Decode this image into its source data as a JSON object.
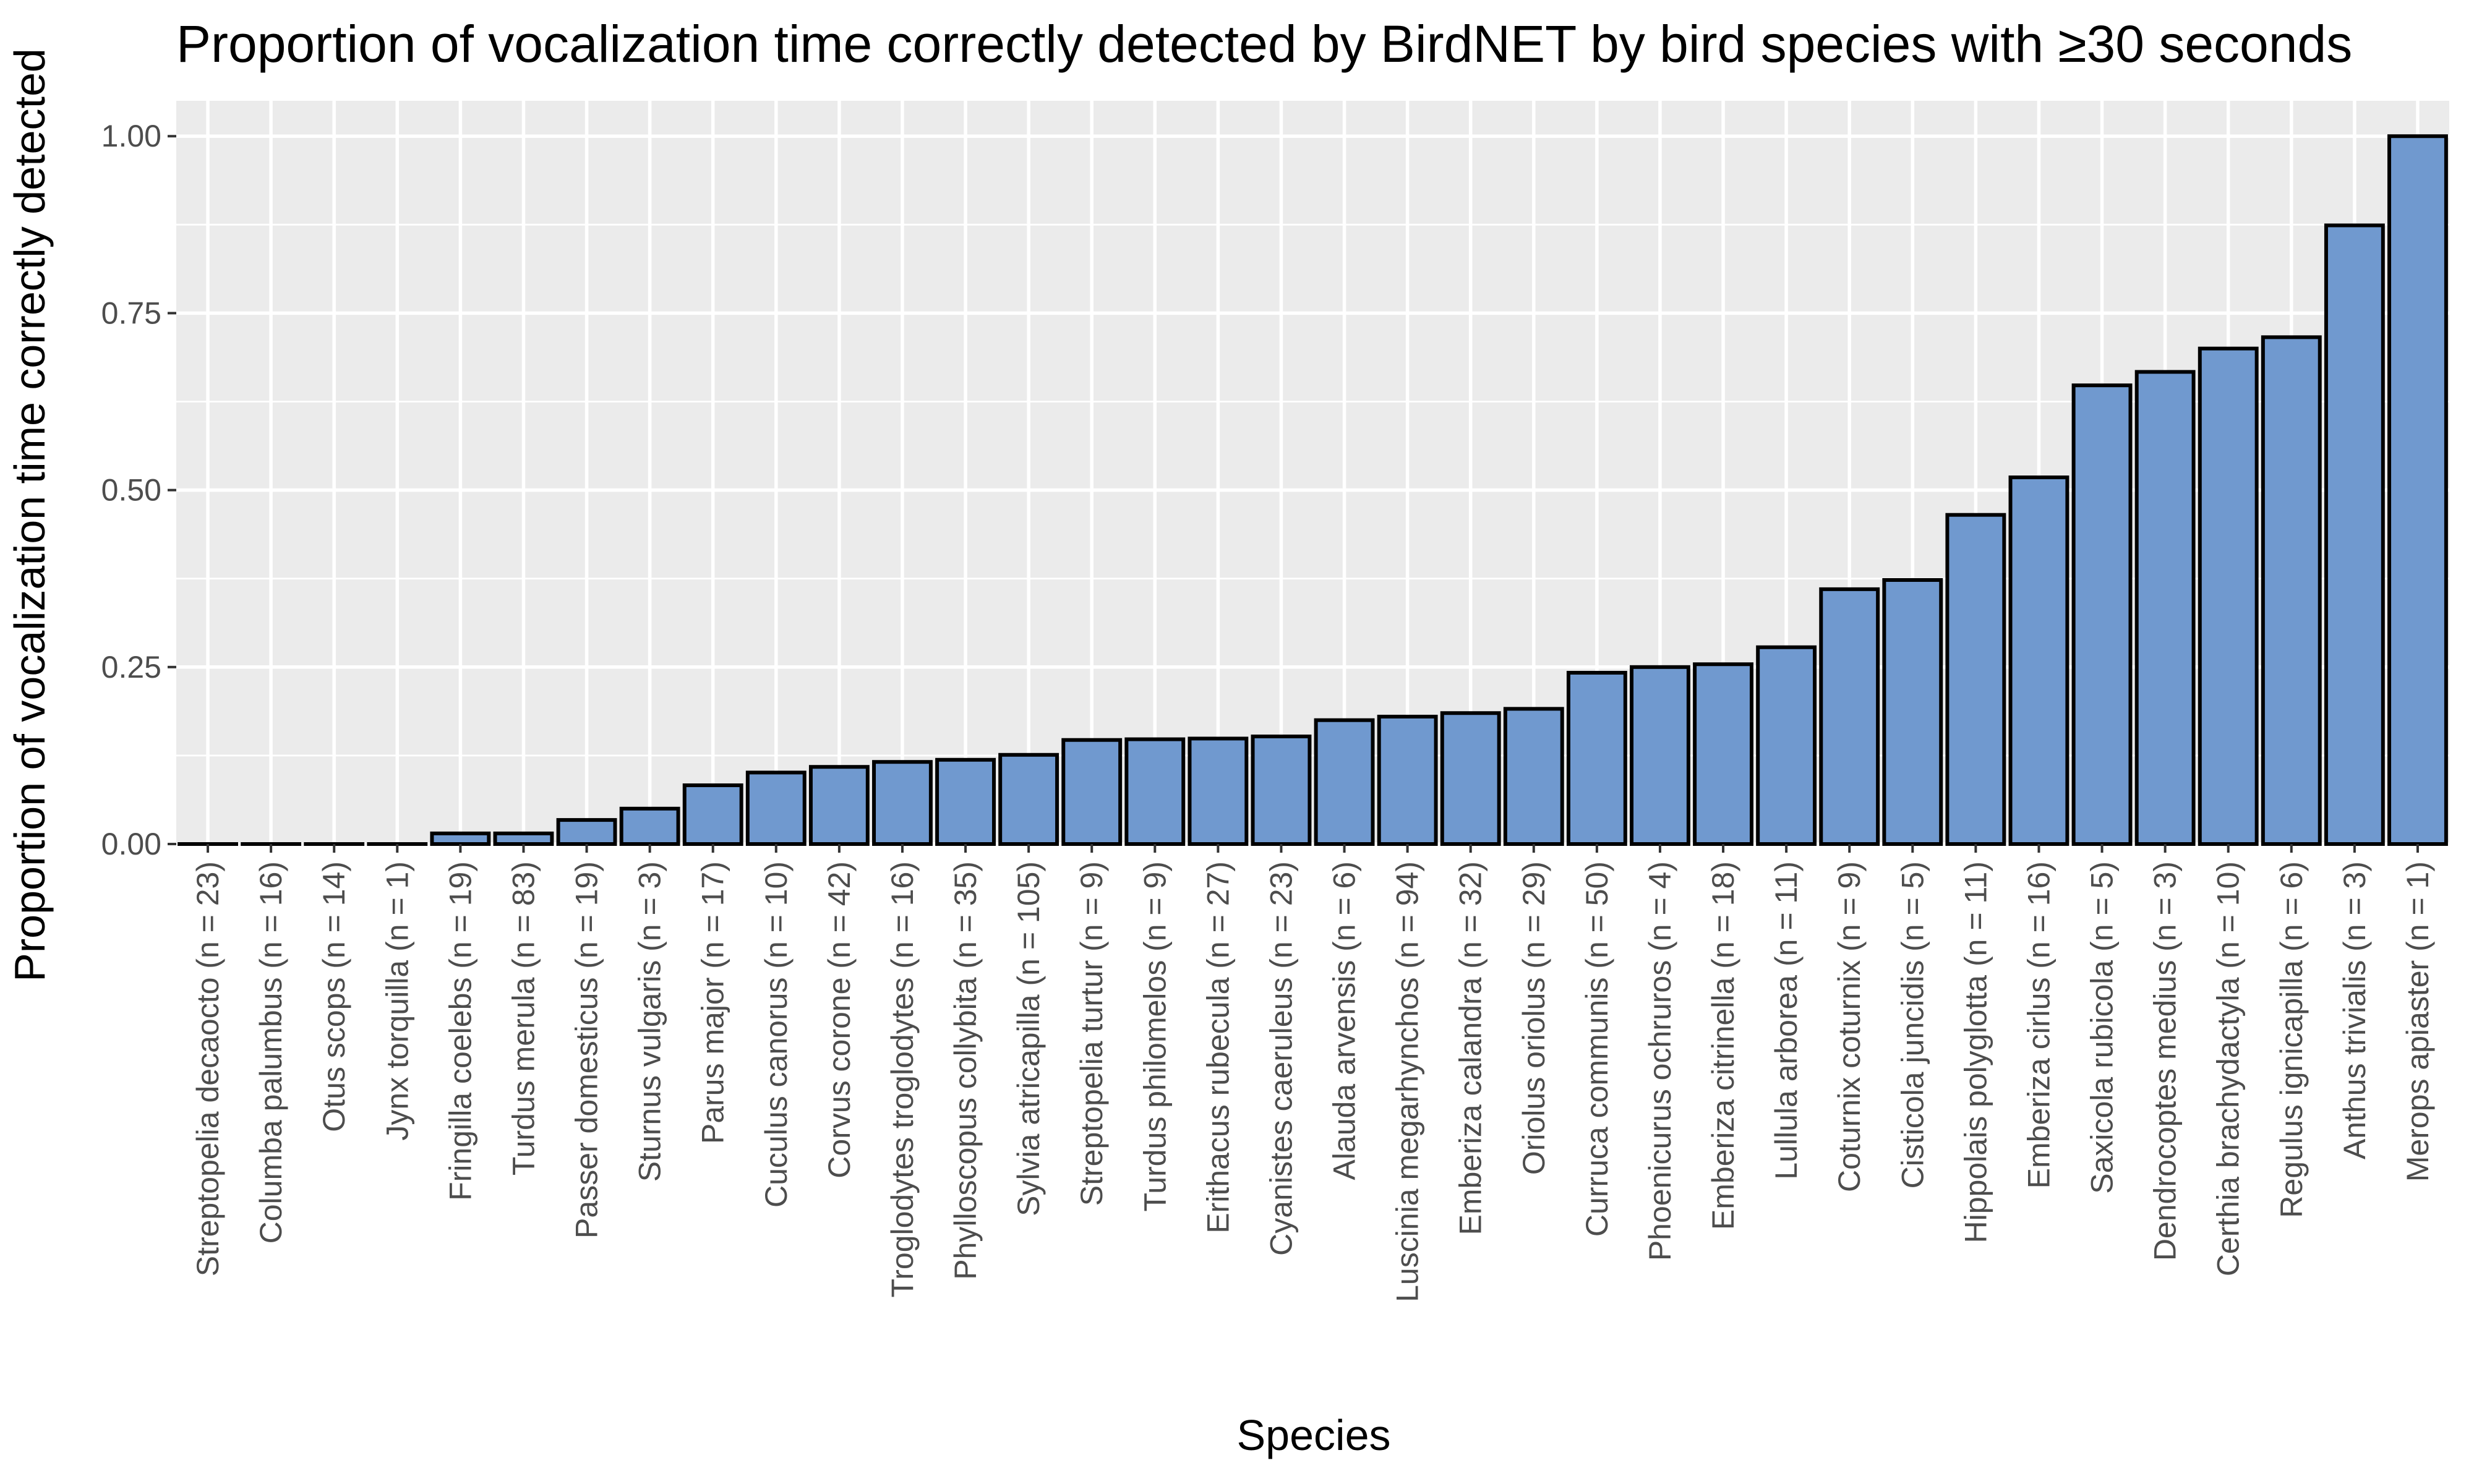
{
  "chart_data": {
    "type": "bar",
    "title": "Proportion of vocalization time correctly detected by BirdNET by bird species with ≥30 seconds",
    "xlabel": "Species",
    "ylabel": "Proportion of vocalization time correctly detected",
    "ylim": [
      0,
      1.05
    ],
    "yticks": [
      "0.00",
      "0.25",
      "0.50",
      "0.75",
      "1.00"
    ],
    "grid": true,
    "legend": "none",
    "bar_color": "#7099cf",
    "panel_color": "#ebebeb",
    "categories": [
      "Streptopelia decaocto (n = 23)",
      "Columba palumbus (n = 16)",
      "Otus scops (n = 14)",
      "Jynx torquilla (n = 1)",
      "Fringilla coelebs (n = 19)",
      "Turdus merula (n = 83)",
      "Passer domesticus (n = 19)",
      "Sturnus vulgaris (n = 3)",
      "Parus major (n = 17)",
      "Cuculus canorus (n = 10)",
      "Corvus corone (n = 42)",
      "Troglodytes troglodytes (n = 16)",
      "Phylloscopus collybita (n = 35)",
      "Sylvia atricapilla (n = 105)",
      "Streptopelia turtur (n = 9)",
      "Turdus philomelos (n = 9)",
      "Erithacus rubecula (n = 27)",
      "Cyanistes caeruleus (n = 23)",
      "Alauda arvensis (n = 6)",
      "Luscinia megarhynchos (n = 94)",
      "Emberiza calandra (n = 32)",
      "Oriolus oriolus (n = 29)",
      "Curruca communis (n = 50)",
      "Phoenicurus ochruros (n = 4)",
      "Emberiza citrinella (n = 18)",
      "Lullula arborea (n = 11)",
      "Coturnix coturnix (n = 9)",
      "Cisticola juncidis (n = 5)",
      "Hippolais polyglotta (n = 11)",
      "Emberiza cirlus (n = 16)",
      "Saxicola rubicola (n = 5)",
      "Dendrocoptes medius (n = 3)",
      "Certhia brachydactyla (n = 10)",
      "Regulus ignicapilla (n = 6)",
      "Anthus trivialis (n = 3)",
      "Merops apiaster (n = 1)"
    ],
    "values": [
      0.0,
      0.0,
      0.0,
      0.0,
      0.015,
      0.015,
      0.034,
      0.05,
      0.083,
      0.101,
      0.109,
      0.116,
      0.119,
      0.126,
      0.147,
      0.148,
      0.149,
      0.152,
      0.175,
      0.18,
      0.185,
      0.191,
      0.242,
      0.25,
      0.254,
      0.278,
      0.36,
      0.373,
      0.465,
      0.518,
      0.648,
      0.667,
      0.7,
      0.716,
      0.874,
      1.0
    ]
  }
}
